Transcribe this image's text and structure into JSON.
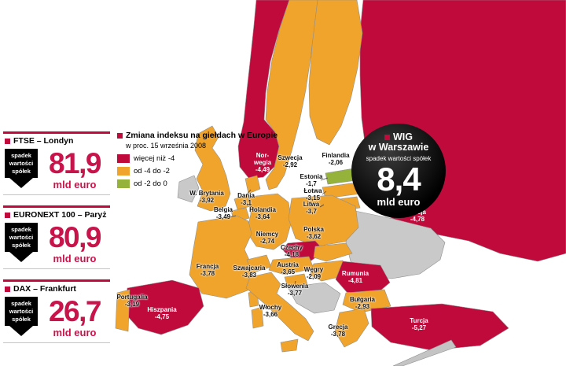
{
  "palette": {
    "red": "#c00a3c",
    "orange": "#f0a42c",
    "green": "#95b33a",
    "grey": "#c9c9c9",
    "number_red": "#c9134b",
    "black": "#000000"
  },
  "panels": [
    {
      "title": "FTSE – Londyn",
      "badge": "spadek wartości spółek",
      "value": "81,9",
      "unit": "mld euro"
    },
    {
      "title": "EURONEXT 100 – Paryż",
      "badge": "spadek wartości spółek",
      "value": "80,9",
      "unit": "mld euro"
    },
    {
      "title": "DAX – Frankfurt",
      "badge": "spadek wartości spółek",
      "value": "26,7",
      "unit": "mld euro"
    }
  ],
  "legend": {
    "title": "Zmiana indeksu na giełdach w Europie",
    "subtitle": "w proc. 15 września 2008",
    "items": [
      {
        "label": "więcej niż -4",
        "color": "#c00a3c"
      },
      {
        "label": "od -4 do -2",
        "color": "#f0a42c"
      },
      {
        "label": "od -2 do 0",
        "color": "#95b33a"
      }
    ]
  },
  "wig": {
    "name": "WIG",
    "place": "w Warszawie",
    "subtitle": "spadek wartości spółek",
    "value": "8,4",
    "unit": "mld euro"
  },
  "map": {
    "countries": [
      {
        "id": "norway",
        "name": "Nor-\nwegia",
        "value": "-4,49",
        "category": "red"
      },
      {
        "id": "sweden",
        "name": "Szwecja",
        "value": "-2,92",
        "category": "orange"
      },
      {
        "id": "finland",
        "name": "Finlandia",
        "value": "-2,06",
        "category": "orange"
      },
      {
        "id": "estonia",
        "name": "Estonia",
        "value": "-1,7",
        "category": "green"
      },
      {
        "id": "latvia",
        "name": "Łotwa",
        "value": "-3,15",
        "category": "orange"
      },
      {
        "id": "lithuania",
        "name": "Litwa",
        "value": "-3,7",
        "category": "orange"
      },
      {
        "id": "russia",
        "name": "Rosja",
        "value": "-4,78",
        "category": "red"
      },
      {
        "id": "uk",
        "name": "W. Brytania",
        "value": "-3,92",
        "category": "orange"
      },
      {
        "id": "denmark",
        "name": "Dania",
        "value": "-3,1",
        "category": "orange"
      },
      {
        "id": "belgium",
        "name": "Belgia",
        "value": "-3,49",
        "category": "orange"
      },
      {
        "id": "netherlands",
        "name": "Holandia",
        "value": "-3,64",
        "category": "orange"
      },
      {
        "id": "germany",
        "name": "Niemcy",
        "value": "-2,74",
        "category": "orange"
      },
      {
        "id": "poland",
        "name": "Polska",
        "value": "-3,62",
        "category": "orange"
      },
      {
        "id": "czech",
        "name": "Czechy",
        "value": "-4,18",
        "category": "red"
      },
      {
        "id": "france",
        "name": "Francja",
        "value": "-3,78",
        "category": "orange"
      },
      {
        "id": "switzerland",
        "name": "Szwajcaria",
        "value": "-3,83",
        "category": "orange"
      },
      {
        "id": "austria",
        "name": "Austria",
        "value": "-3,65",
        "category": "orange"
      },
      {
        "id": "hungary",
        "name": "Węgry",
        "value": "-2,09",
        "category": "orange"
      },
      {
        "id": "romania",
        "name": "Rumunia",
        "value": "-4,81",
        "category": "red"
      },
      {
        "id": "slovenia",
        "name": "Słowenia",
        "value": "-3,77",
        "category": "orange"
      },
      {
        "id": "italy",
        "name": "Włochy",
        "value": "-3,66",
        "category": "orange"
      },
      {
        "id": "bulgaria",
        "name": "Bułgaria",
        "value": "-2,93",
        "category": "orange"
      },
      {
        "id": "greece",
        "name": "Grecja",
        "value": "-3,78",
        "category": "orange"
      },
      {
        "id": "turkey",
        "name": "Turcja",
        "value": "-5,27",
        "category": "red"
      },
      {
        "id": "spain",
        "name": "Hiszpania",
        "value": "-4,75",
        "category": "red"
      },
      {
        "id": "portugal",
        "name": "Portugalia",
        "value": "-3,19",
        "category": "orange"
      }
    ]
  }
}
